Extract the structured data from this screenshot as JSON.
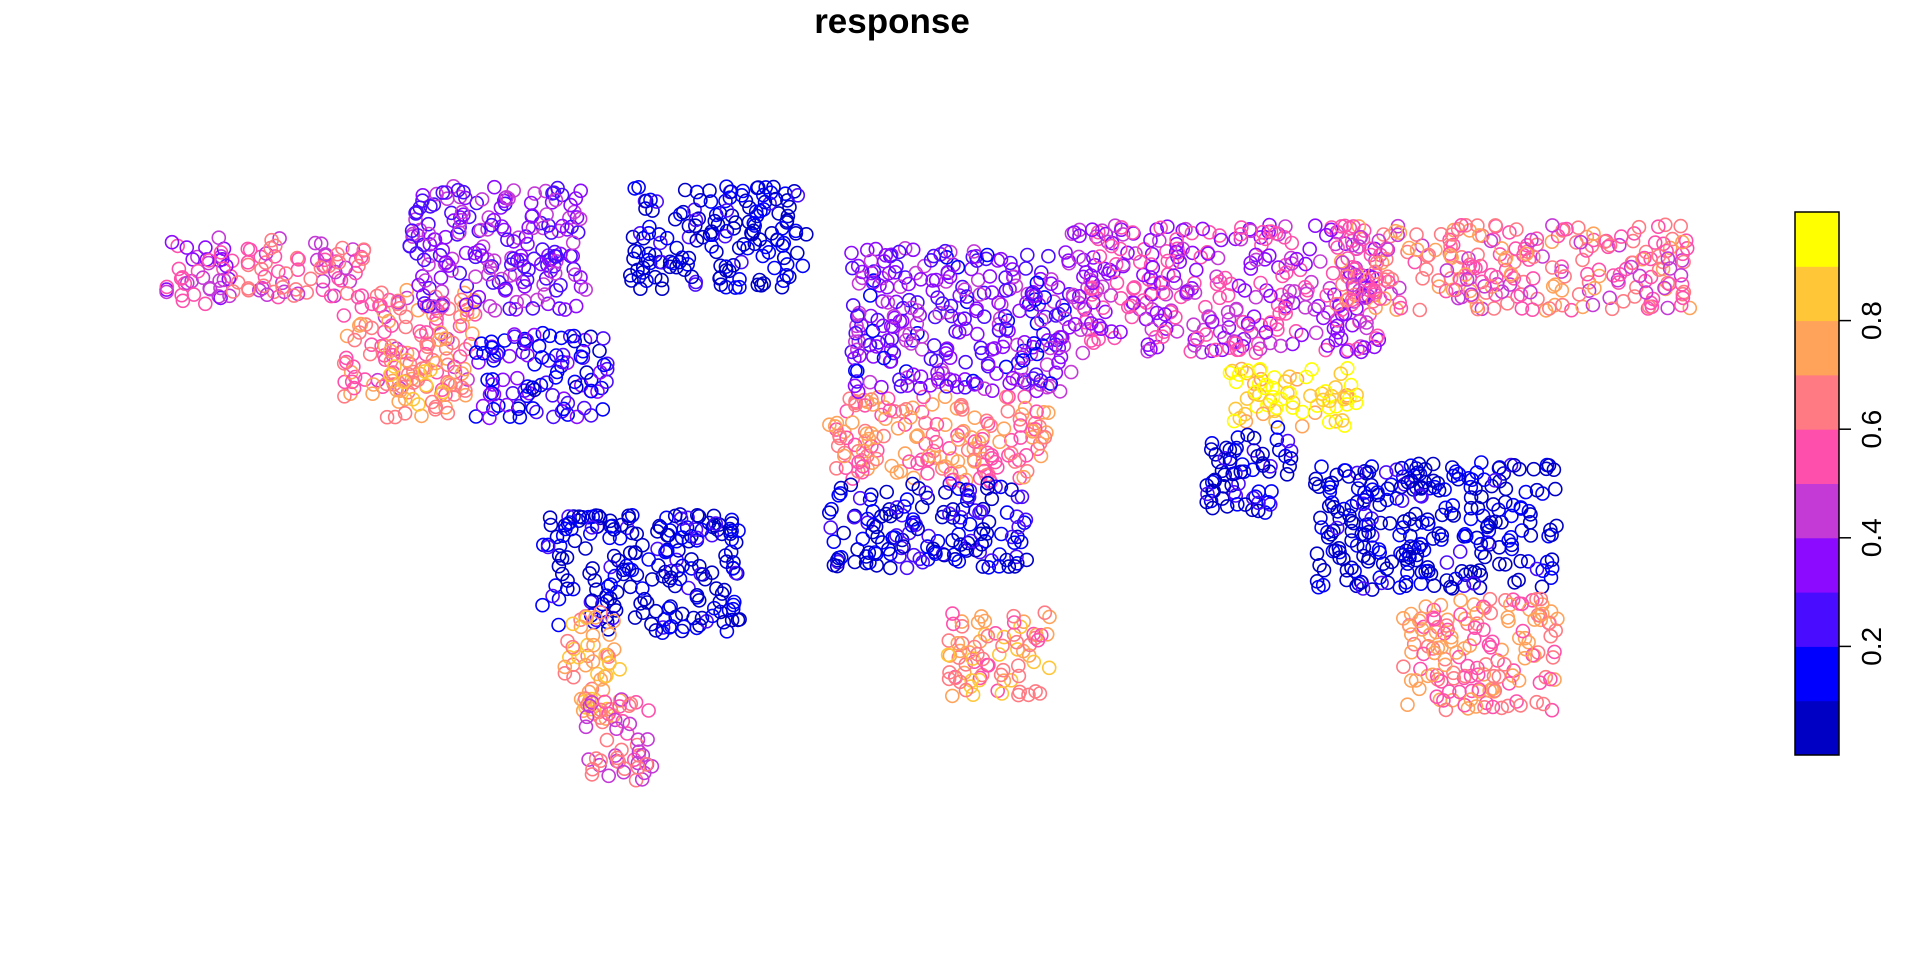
{
  "title": "response",
  "legend": {
    "breaks": [
      0.0,
      0.1,
      0.2,
      0.3,
      0.4,
      0.5,
      0.6,
      0.7,
      0.8,
      0.9,
      1.0
    ],
    "colors": [
      "#0000c5",
      "#0000ff",
      "#4a0cff",
      "#8b0aff",
      "#c33ad7",
      "#ff4fac",
      "#ff7a82",
      "#ffa25a",
      "#ffc638",
      "#ffff00"
    ],
    "tick_labels": [
      "0.2",
      "0.4",
      "0.6",
      "0.8"
    ],
    "tick_values": [
      0.2,
      0.4,
      0.6,
      0.8
    ],
    "placement": "right"
  },
  "chart_data": {
    "type": "scatter",
    "title": "response",
    "marker": "open-circle",
    "value_range": [
      0,
      1
    ],
    "point_count": "thousands (global point samples)",
    "extent": {
      "lon": [
        -180,
        180
      ],
      "lat": [
        -60,
        90
      ]
    },
    "regions": [
      {
        "lon": [
          -165,
          -150
        ],
        "lat": [
          55,
          72
        ],
        "v": 0.45
      },
      {
        "lon": [
          -150,
          -120
        ],
        "lat": [
          58,
          72
        ],
        "v": 0.55
      },
      {
        "lon": [
          -125,
          -95
        ],
        "lat": [
          35,
          60
        ],
        "v": 0.62
      },
      {
        "lon": [
          -115,
          -100
        ],
        "lat": [
          30,
          45
        ],
        "v": 0.75
      },
      {
        "lon": [
          -110,
          -70
        ],
        "lat": [
          55,
          84
        ],
        "v": 0.35
      },
      {
        "lon": [
          -95,
          -65
        ],
        "lat": [
          30,
          50
        ],
        "v": 0.22
      },
      {
        "lon": [
          -60,
          -20
        ],
        "lat": [
          60,
          84
        ],
        "v": 0.08
      },
      {
        "lon": [
          -80,
          -35
        ],
        "lat": [
          -20,
          8
        ],
        "v": 0.08
      },
      {
        "lon": [
          -75,
          -62
        ],
        "lat": [
          -40,
          -15
        ],
        "v": 0.75
      },
      {
        "lon": [
          -70,
          -55
        ],
        "lat": [
          -55,
          -35
        ],
        "v": 0.55
      },
      {
        "lon": [
          -15,
          35
        ],
        "lat": [
          15,
          35
        ],
        "v": 0.65
      },
      {
        "lon": [
          -15,
          30
        ],
        "lat": [
          -5,
          15
        ],
        "v": 0.12
      },
      {
        "lon": [
          12,
          35
        ],
        "lat": [
          -35,
          -15
        ],
        "v": 0.7
      },
      {
        "lon": [
          -10,
          40
        ],
        "lat": [
          36,
          70
        ],
        "v": 0.32
      },
      {
        "lon": [
          40,
          110
        ],
        "lat": [
          45,
          75
        ],
        "v": 0.45
      },
      {
        "lon": [
          75,
          105
        ],
        "lat": [
          28,
          42
        ],
        "v": 0.9
      },
      {
        "lon": [
          70,
          90
        ],
        "lat": [
          8,
          28
        ],
        "v": 0.12
      },
      {
        "lon": [
          95,
          150
        ],
        "lat": [
          -10,
          20
        ],
        "v": 0.08
      },
      {
        "lon": [
          115,
          150
        ],
        "lat": [
          -38,
          -12
        ],
        "v": 0.65
      },
      {
        "lon": [
          100,
          180
        ],
        "lat": [
          55,
          75
        ],
        "v": 0.6
      }
    ]
  }
}
